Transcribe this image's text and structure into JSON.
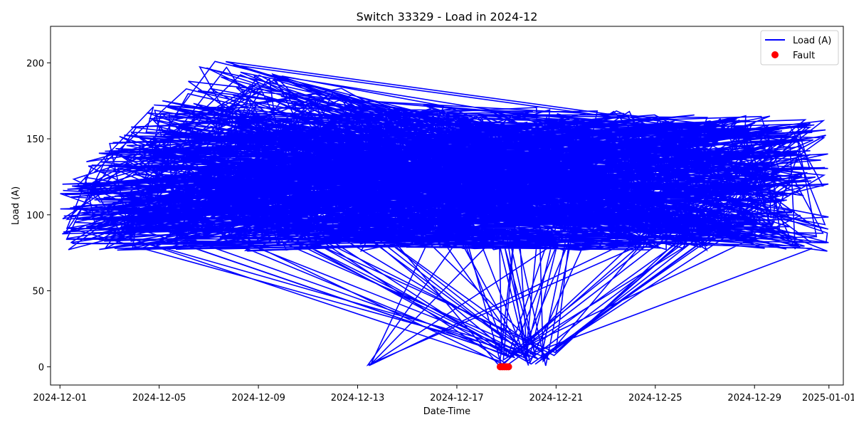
{
  "colors": {
    "load": "#0000ff",
    "fault": "#ff0000",
    "axes": "#000000",
    "background": "#ffffff"
  },
  "chart_data": {
    "type": "line",
    "title": "Switch 33329 - Load in 2024-12",
    "xlabel": "Date-Time",
    "ylabel": "Load (A)",
    "xlim": [
      "2024-11-30",
      "2025-01-02"
    ],
    "ylim": [
      -12,
      224
    ],
    "grid": false,
    "legend_position": "top-right",
    "x_ticks": [
      "2024-12-01",
      "2024-12-05",
      "2024-12-09",
      "2024-12-13",
      "2024-12-17",
      "2024-12-21",
      "2024-12-25",
      "2024-12-29",
      "2025-01-01"
    ],
    "y_ticks": [
      0,
      50,
      100,
      150,
      200
    ],
    "series": [
      {
        "name": "Load (A)",
        "style": "line",
        "color": "#0000ff",
        "note_sampling": "values approximated",
        "x": [],
        "y": []
      },
      {
        "name": "Fault",
        "style": "scatter",
        "color": "#ff0000",
        "x": [
          "2024-12-18 18:00",
          "2024-12-18 20:00",
          "2024-12-18 22:00",
          "2024-12-19 00:00",
          "2024-12-19 02:00"
        ],
        "y": [
          0,
          0,
          0,
          0,
          0
        ]
      }
    ]
  }
}
